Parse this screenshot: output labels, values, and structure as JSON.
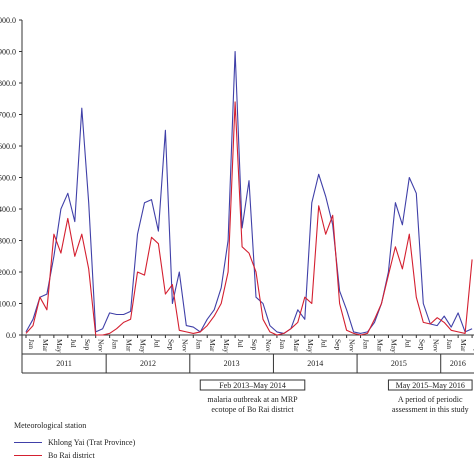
{
  "chart_data": {
    "type": "line",
    "title": "",
    "xlabel": "",
    "ylabel": "",
    "y_tick_labels": [
      "0.0",
      "100.0",
      "200.0",
      "300.0",
      "400.0",
      "500.0",
      "600.0",
      "700.0",
      "800.0",
      "900.0",
      "1000.0"
    ],
    "ylim": [
      0,
      1000
    ],
    "grid": false,
    "legend_title": "Meteorological station",
    "legend_position": "bottom-left",
    "month_tick_labels": [
      "Jan",
      "Mar",
      "May",
      "Jul",
      "Sep",
      "Nov"
    ],
    "years": [
      "2011",
      "2012",
      "2013",
      "2014",
      "2015",
      "2016"
    ],
    "x": [
      "2011-01",
      "2011-02",
      "2011-03",
      "2011-04",
      "2011-05",
      "2011-06",
      "2011-07",
      "2011-08",
      "2011-09",
      "2011-10",
      "2011-11",
      "2011-12",
      "2012-01",
      "2012-02",
      "2012-03",
      "2012-04",
      "2012-05",
      "2012-06",
      "2012-07",
      "2012-08",
      "2012-09",
      "2012-10",
      "2012-11",
      "2012-12",
      "2013-01",
      "2013-02",
      "2013-03",
      "2013-04",
      "2013-05",
      "2013-06",
      "2013-07",
      "2013-08",
      "2013-09",
      "2013-10",
      "2013-11",
      "2013-12",
      "2014-01",
      "2014-02",
      "2014-03",
      "2014-04",
      "2014-05",
      "2014-06",
      "2014-07",
      "2014-08",
      "2014-09",
      "2014-10",
      "2014-11",
      "2014-12",
      "2015-01",
      "2015-02",
      "2015-03",
      "2015-04",
      "2015-05",
      "2015-06",
      "2015-07",
      "2015-08",
      "2015-09",
      "2015-10",
      "2015-11",
      "2015-12",
      "2016-01",
      "2016-02",
      "2016-03",
      "2016-04",
      "2016-05"
    ],
    "series": [
      {
        "name": "Khlong Yai (Trat Province)",
        "color": "#4040a8",
        "values": [
          10,
          50,
          120,
          130,
          250,
          400,
          450,
          360,
          720,
          420,
          10,
          20,
          70,
          65,
          65,
          75,
          320,
          420,
          430,
          330,
          650,
          100,
          200,
          30,
          25,
          10,
          50,
          80,
          150,
          300,
          900,
          340,
          490,
          120,
          100,
          30,
          10,
          5,
          20,
          80,
          50,
          420,
          510,
          440,
          350,
          140,
          80,
          10,
          5,
          10,
          40,
          100,
          200,
          420,
          350,
          500,
          450,
          100,
          35,
          30,
          60,
          25,
          70,
          10,
          20
        ]
      },
      {
        "name": "Bo Rai district",
        "color": "#d42030",
        "values": [
          5,
          30,
          120,
          80,
          320,
          260,
          370,
          250,
          320,
          210,
          0,
          0,
          5,
          20,
          40,
          50,
          200,
          190,
          310,
          290,
          130,
          160,
          15,
          10,
          5,
          10,
          30,
          60,
          100,
          200,
          740,
          280,
          260,
          200,
          50,
          10,
          0,
          5,
          20,
          40,
          120,
          100,
          410,
          320,
          380,
          100,
          15,
          5,
          0,
          5,
          50,
          100,
          190,
          280,
          210,
          320,
          120,
          40,
          35,
          55,
          40,
          15,
          10,
          5,
          240
        ]
      }
    ],
    "annotations": [
      {
        "label": "Feb 2013–May 2014",
        "from": "2013-02",
        "to": "2014-05",
        "note_lines": [
          "malaria outbreak at an MRP",
          "ecotope of Bo Rai district"
        ]
      },
      {
        "label": "May 2015–May 2016",
        "from": "2015-05",
        "to": "2016-05",
        "note_lines": [
          "A period of periodic",
          "assessment in this study"
        ]
      }
    ]
  }
}
